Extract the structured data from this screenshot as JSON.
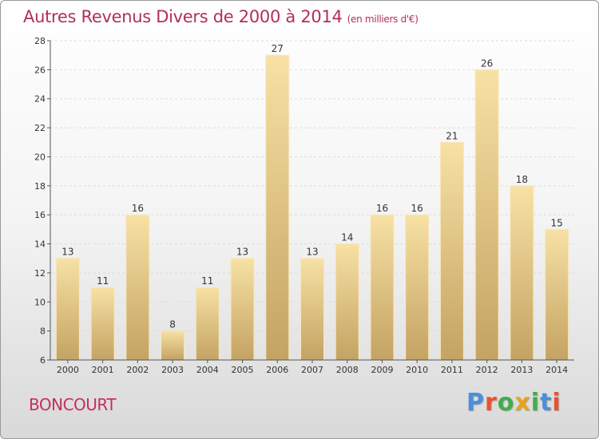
{
  "title": "Autres Revenus Divers de 2000 à 2014",
  "title_unit": "(en milliers d'€)",
  "commune": "BONCOURT",
  "logo": {
    "letters": [
      "P",
      "r",
      "o",
      "x",
      "i",
      "t",
      "i"
    ],
    "colors": [
      "#4a8fd8",
      "#e8532e",
      "#3fae49",
      "#e8a21e",
      "#3fae49",
      "#4a8fd8",
      "#e8532e"
    ]
  },
  "colors": {
    "title": "#b0305a",
    "bar_light": "#f5dc9c",
    "bar_dark": "#c9a865"
  },
  "chart_data": {
    "type": "bar",
    "categories": [
      "2000",
      "2001",
      "2002",
      "2003",
      "2004",
      "2005",
      "2006",
      "2007",
      "2008",
      "2009",
      "2010",
      "2011",
      "2012",
      "2013",
      "2014"
    ],
    "values": [
      13,
      11,
      16,
      8,
      11,
      13,
      27,
      13,
      14,
      16,
      16,
      21,
      26,
      18,
      15
    ],
    "ylim": [
      6,
      28
    ],
    "yticks": [
      6,
      8,
      10,
      12,
      14,
      16,
      18,
      20,
      22,
      24,
      26,
      28
    ],
    "grid": true
  }
}
